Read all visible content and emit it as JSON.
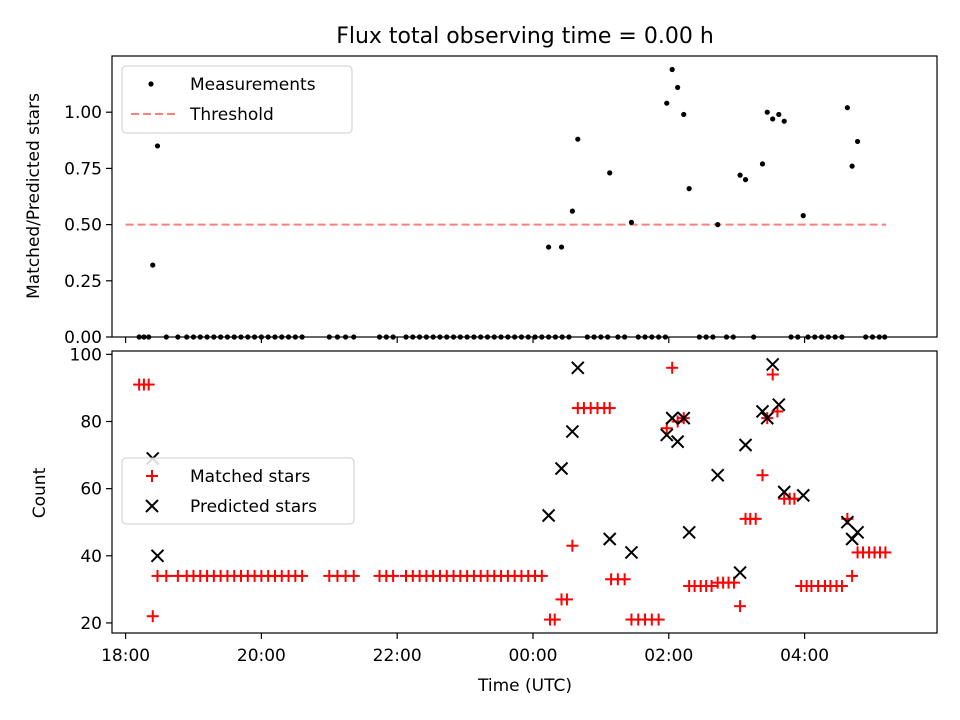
{
  "chart_data": [
    {
      "type": "scatter",
      "title": "Flux total observing time = 0.00 h",
      "xlabel": "",
      "ylabel": "Matched/Predicted stars",
      "x_unit": "hours relative to 00:00 UTC",
      "xlim": [
        -6.2,
        5.95
      ],
      "ylim": [
        0.0,
        1.25
      ],
      "yticks": [
        0.0,
        0.25,
        0.5,
        0.75,
        1.0
      ],
      "ytick_labels": [
        "0.00",
        "0.25",
        "0.50",
        "0.75",
        "1.00"
      ],
      "legend": {
        "placement": "top-left",
        "entries": [
          {
            "label": "Measurements",
            "marker": "dot",
            "color": "#000000"
          },
          {
            "label": "Threshold",
            "marker": "dashed-line",
            "color": "#ff7f7f"
          }
        ]
      },
      "threshold": {
        "value": 0.5,
        "x_range": [
          -6.0,
          5.2
        ],
        "color": "#ff7f7f"
      },
      "series": [
        {
          "name": "Measurements",
          "points": [
            [
              -5.8,
              0
            ],
            [
              -5.73,
              0
            ],
            [
              -5.66,
              0
            ],
            [
              -5.6,
              0.32
            ],
            [
              -5.53,
              0.85
            ],
            [
              -5.4,
              0
            ],
            [
              -5.23,
              0
            ],
            [
              -5.1,
              0
            ],
            [
              -5.0,
              0
            ],
            [
              -4.9,
              0
            ],
            [
              -4.8,
              0
            ],
            [
              -4.7,
              0
            ],
            [
              -4.6,
              0
            ],
            [
              -4.5,
              0
            ],
            [
              -4.4,
              0
            ],
            [
              -4.3,
              0
            ],
            [
              -4.2,
              0
            ],
            [
              -4.1,
              0
            ],
            [
              -4.0,
              0
            ],
            [
              -3.9,
              0
            ],
            [
              -3.8,
              0
            ],
            [
              -3.7,
              0
            ],
            [
              -3.6,
              0
            ],
            [
              -3.5,
              0
            ],
            [
              -3.4,
              0
            ],
            [
              -3.0,
              0
            ],
            [
              -2.88,
              0
            ],
            [
              -2.76,
              0
            ],
            [
              -2.64,
              0
            ],
            [
              -2.26,
              0
            ],
            [
              -2.16,
              0
            ],
            [
              -2.06,
              0
            ],
            [
              -1.87,
              0
            ],
            [
              -1.77,
              0
            ],
            [
              -1.67,
              0
            ],
            [
              -1.57,
              0
            ],
            [
              -1.47,
              0
            ],
            [
              -1.37,
              0
            ],
            [
              -1.27,
              0
            ],
            [
              -1.17,
              0
            ],
            [
              -1.07,
              0
            ],
            [
              -0.97,
              0
            ],
            [
              -0.87,
              0
            ],
            [
              -0.77,
              0
            ],
            [
              -0.67,
              0
            ],
            [
              -0.57,
              0
            ],
            [
              -0.47,
              0
            ],
            [
              -0.37,
              0
            ],
            [
              -0.27,
              0
            ],
            [
              -0.17,
              0
            ],
            [
              -0.07,
              0
            ],
            [
              0.03,
              0
            ],
            [
              0.13,
              0
            ],
            [
              0.23,
              0
            ],
            [
              0.33,
              0
            ],
            [
              0.43,
              0
            ],
            [
              0.53,
              0
            ],
            [
              0.23,
              0.4
            ],
            [
              0.42,
              0.4
            ],
            [
              0.58,
              0.56
            ],
            [
              0.66,
              0.88
            ],
            [
              0.8,
              0
            ],
            [
              0.9,
              0
            ],
            [
              1.0,
              0
            ],
            [
              1.1,
              0
            ],
            [
              1.13,
              0.73
            ],
            [
              1.25,
              0
            ],
            [
              1.35,
              0
            ],
            [
              1.45,
              0.51
            ],
            [
              1.55,
              0
            ],
            [
              1.65,
              0
            ],
            [
              1.75,
              0
            ],
            [
              1.85,
              0
            ],
            [
              1.95,
              0
            ],
            [
              1.97,
              1.04
            ],
            [
              2.05,
              1.19
            ],
            [
              2.13,
              1.11
            ],
            [
              2.22,
              0.99
            ],
            [
              2.3,
              0.66
            ],
            [
              2.45,
              0
            ],
            [
              2.55,
              0
            ],
            [
              2.65,
              0
            ],
            [
              2.72,
              0.5
            ],
            [
              2.85,
              0
            ],
            [
              2.95,
              0
            ],
            [
              3.05,
              0.72
            ],
            [
              3.13,
              0.7
            ],
            [
              3.25,
              0
            ],
            [
              3.38,
              0.77
            ],
            [
              3.45,
              1.0
            ],
            [
              3.53,
              0.97
            ],
            [
              3.62,
              0.99
            ],
            [
              3.7,
              0.96
            ],
            [
              3.8,
              0
            ],
            [
              3.9,
              0
            ],
            [
              3.98,
              0.54
            ],
            [
              4.05,
              0
            ],
            [
              4.15,
              0
            ],
            [
              4.25,
              0
            ],
            [
              4.35,
              0
            ],
            [
              4.45,
              0
            ],
            [
              4.55,
              0
            ],
            [
              4.63,
              1.02
            ],
            [
              4.7,
              0.76
            ],
            [
              4.78,
              0.87
            ],
            [
              4.9,
              0
            ],
            [
              5.0,
              0
            ],
            [
              5.1,
              0
            ],
            [
              5.18,
              0
            ]
          ]
        }
      ]
    },
    {
      "type": "scatter",
      "title": "",
      "xlabel": "Time (UTC)",
      "ylabel": "Count",
      "x_unit": "hours relative to 00:00 UTC",
      "xlim": [
        -6.2,
        5.95
      ],
      "ylim": [
        17,
        101
      ],
      "yticks": [
        20,
        40,
        60,
        80,
        100
      ],
      "ytick_labels": [
        "20",
        "40",
        "60",
        "80",
        "100"
      ],
      "xticks": [
        -6,
        -4,
        -2,
        0,
        2,
        4
      ],
      "xtick_labels": [
        "18:00",
        "20:00",
        "22:00",
        "00:00",
        "02:00",
        "04:00"
      ],
      "legend": {
        "placement": "center-left",
        "entries": [
          {
            "label": "Matched stars",
            "marker": "plus",
            "color": "#ff0000"
          },
          {
            "label": "Predicted stars",
            "marker": "x",
            "color": "#000000"
          }
        ]
      },
      "series": [
        {
          "name": "Matched stars",
          "marker": "plus",
          "color": "#ff0000",
          "points": [
            [
              -5.8,
              91
            ],
            [
              -5.73,
              91
            ],
            [
              -5.66,
              91
            ],
            [
              -5.6,
              22
            ],
            [
              -5.53,
              34
            ],
            [
              -5.4,
              34
            ],
            [
              -5.23,
              34
            ],
            [
              -5.1,
              34
            ],
            [
              -5.0,
              34
            ],
            [
              -4.9,
              34
            ],
            [
              -4.8,
              34
            ],
            [
              -4.7,
              34
            ],
            [
              -4.6,
              34
            ],
            [
              -4.5,
              34
            ],
            [
              -4.4,
              34
            ],
            [
              -4.3,
              34
            ],
            [
              -4.2,
              34
            ],
            [
              -4.1,
              34
            ],
            [
              -4.0,
              34
            ],
            [
              -3.9,
              34
            ],
            [
              -3.8,
              34
            ],
            [
              -3.7,
              34
            ],
            [
              -3.6,
              34
            ],
            [
              -3.5,
              34
            ],
            [
              -3.4,
              34
            ],
            [
              -3.0,
              34
            ],
            [
              -2.88,
              34
            ],
            [
              -2.76,
              34
            ],
            [
              -2.64,
              34
            ],
            [
              -2.26,
              34
            ],
            [
              -2.16,
              34
            ],
            [
              -2.06,
              34
            ],
            [
              -1.87,
              34
            ],
            [
              -1.77,
              34
            ],
            [
              -1.67,
              34
            ],
            [
              -1.57,
              34
            ],
            [
              -1.47,
              34
            ],
            [
              -1.37,
              34
            ],
            [
              -1.27,
              34
            ],
            [
              -1.17,
              34
            ],
            [
              -1.07,
              34
            ],
            [
              -0.97,
              34
            ],
            [
              -0.87,
              34
            ],
            [
              -0.77,
              34
            ],
            [
              -0.67,
              34
            ],
            [
              -0.57,
              34
            ],
            [
              -0.47,
              34
            ],
            [
              -0.37,
              34
            ],
            [
              -0.27,
              34
            ],
            [
              -0.17,
              34
            ],
            [
              -0.07,
              34
            ],
            [
              0.03,
              34
            ],
            [
              0.13,
              34
            ],
            [
              0.25,
              21
            ],
            [
              0.32,
              21
            ],
            [
              0.42,
              27
            ],
            [
              0.5,
              27
            ],
            [
              0.58,
              43
            ],
            [
              0.66,
              84
            ],
            [
              0.75,
              84
            ],
            [
              0.85,
              84
            ],
            [
              0.95,
              84
            ],
            [
              1.05,
              84
            ],
            [
              1.13,
              84
            ],
            [
              1.15,
              33
            ],
            [
              1.25,
              33
            ],
            [
              1.35,
              33
            ],
            [
              1.45,
              21
            ],
            [
              1.55,
              21
            ],
            [
              1.65,
              21
            ],
            [
              1.75,
              21
            ],
            [
              1.85,
              21
            ],
            [
              1.97,
              78
            ],
            [
              2.05,
              96
            ],
            [
              2.13,
              80
            ],
            [
              2.22,
              81
            ],
            [
              2.3,
              31
            ],
            [
              2.38,
              31
            ],
            [
              2.47,
              31
            ],
            [
              2.55,
              31
            ],
            [
              2.63,
              31
            ],
            [
              2.72,
              32
            ],
            [
              2.8,
              32
            ],
            [
              2.88,
              32
            ],
            [
              2.96,
              32
            ],
            [
              3.05,
              25
            ],
            [
              3.13,
              51
            ],
            [
              3.2,
              51
            ],
            [
              3.28,
              51
            ],
            [
              3.38,
              64
            ],
            [
              3.45,
              81
            ],
            [
              3.53,
              94
            ],
            [
              3.6,
              83
            ],
            [
              3.7,
              57
            ],
            [
              3.78,
              57
            ],
            [
              3.85,
              57
            ],
            [
              3.95,
              31
            ],
            [
              4.03,
              31
            ],
            [
              4.1,
              31
            ],
            [
              4.2,
              31
            ],
            [
              4.3,
              31
            ],
            [
              4.38,
              31
            ],
            [
              4.47,
              31
            ],
            [
              4.55,
              31
            ],
            [
              4.63,
              51
            ],
            [
              4.7,
              34
            ],
            [
              4.78,
              41
            ],
            [
              4.86,
              41
            ],
            [
              4.95,
              41
            ],
            [
              5.03,
              41
            ],
            [
              5.11,
              41
            ],
            [
              5.19,
              41
            ]
          ]
        },
        {
          "name": "Predicted stars",
          "marker": "x",
          "color": "#000000",
          "points": [
            [
              -5.6,
              69
            ],
            [
              -5.53,
              40
            ],
            [
              0.23,
              52
            ],
            [
              0.42,
              66
            ],
            [
              0.58,
              77
            ],
            [
              0.66,
              96
            ],
            [
              1.13,
              45
            ],
            [
              1.45,
              41
            ],
            [
              1.97,
              76
            ],
            [
              2.05,
              81
            ],
            [
              2.13,
              74
            ],
            [
              2.22,
              81
            ],
            [
              2.3,
              47
            ],
            [
              2.72,
              64
            ],
            [
              3.05,
              35
            ],
            [
              3.13,
              73
            ],
            [
              3.38,
              83
            ],
            [
              3.45,
              81
            ],
            [
              3.53,
              97
            ],
            [
              3.62,
              85
            ],
            [
              3.7,
              59
            ],
            [
              3.98,
              58
            ],
            [
              4.63,
              50
            ],
            [
              4.7,
              45
            ],
            [
              4.78,
              47
            ]
          ]
        }
      ]
    }
  ]
}
